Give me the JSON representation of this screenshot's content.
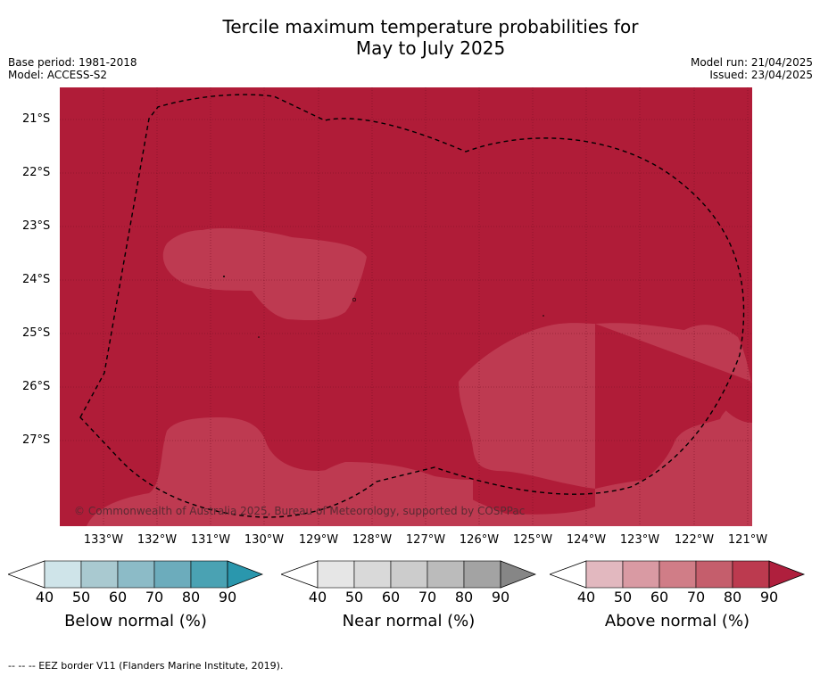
{
  "title_line1": "Tercile maximum temperature probabilities for",
  "title_line2": "May to July 2025",
  "meta_left": {
    "base_period": "Base period: 1981-2018",
    "model": "Model: ACCESS-S2"
  },
  "meta_right": {
    "model_run": "Model run: 21/04/2025",
    "issued": "Issued: 23/04/2025"
  },
  "lat_labels": [
    "21°S",
    "22°S",
    "23°S",
    "24°S",
    "25°S",
    "26°S",
    "27°S"
  ],
  "lon_labels": [
    "133°W",
    "132°W",
    "131°W",
    "130°W",
    "129°W",
    "128°W",
    "127°W",
    "126°W",
    "125°W",
    "124°W",
    "123°W",
    "122°W",
    "121°W"
  ],
  "copyright": "© Commonwealth of Australia 2025, Bureau of Meteorology, supported by COSPPac",
  "colorbars": [
    {
      "title": "Below normal (%)",
      "ticks": [
        "40",
        "50",
        "60",
        "70",
        "80",
        "90"
      ],
      "colors": [
        "#cfe4e9",
        "#a9c9d0",
        "#8cbbc7",
        "#6cacbc",
        "#4aa2b3",
        "#2a97ad"
      ]
    },
    {
      "title": "Near normal (%)",
      "ticks": [
        "40",
        "50",
        "60",
        "70",
        "80",
        "90"
      ],
      "colors": [
        "#e6e6e6",
        "#d9d9d9",
        "#cccccc",
        "#bbbbbb",
        "#a3a3a3",
        "#868686"
      ]
    },
    {
      "title": "Above normal (%)",
      "ticks": [
        "40",
        "50",
        "60",
        "70",
        "80",
        "90"
      ],
      "colors": [
        "#e2b8bf",
        "#d99aa3",
        "#d07d87",
        "#c55e6c",
        "#bc3a4f",
        "#af1f3d"
      ]
    }
  ],
  "map_colors": {
    "above_90": "#b01c38",
    "above_80": "#be3a51"
  },
  "footer": "--  --  -- EEZ border V11 (Flanders Marine Institute, 2019)."
}
